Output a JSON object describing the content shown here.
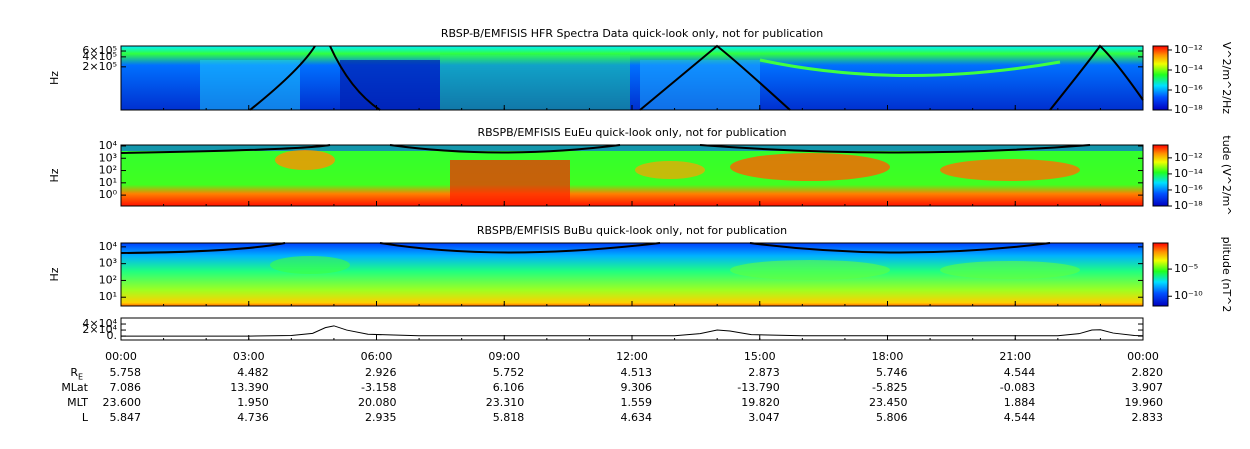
{
  "chart_data": [
    {
      "type": "spectrogram",
      "title": "RBSP-B/EMFISIS  HFR Spectra Data quick-look only, not for publication",
      "ylabel": "Hz",
      "log": true,
      "ylim": [
        10000,
        850000
      ],
      "yticks": [
        {
          "value": 200000,
          "label": "2×10⁵"
        },
        {
          "value": 400000,
          "label": "4×10⁵"
        },
        {
          "value": 600000,
          "label": "6×10⁵"
        }
      ],
      "colorbar": {
        "label": "V^2/m^2/Hz",
        "lim": [
          1e-18,
          2.5e-12
        ],
        "ticks": [
          {
            "value": 1e-12,
            "label": "10⁻¹²"
          },
          {
            "value": 1e-14,
            "label": "10⁻¹⁴"
          },
          {
            "value": 1e-16,
            "label": "10⁻¹⁶"
          },
          {
            "value": 1e-18,
            "label": "10⁻¹⁸"
          }
        ]
      }
    },
    {
      "type": "spectrogram",
      "title": "RBSPB/EMFISIS  EuEu quick-look only, not for publication",
      "ylabel": "Hz",
      "log": true,
      "ylim": [
        0.13,
        12000
      ],
      "yticks": [
        {
          "value": 1,
          "label": "10⁰"
        },
        {
          "value": 10,
          "label": "10¹"
        },
        {
          "value": 100,
          "label": "10²"
        },
        {
          "value": 1000,
          "label": "10³"
        },
        {
          "value": 10000,
          "label": "10⁴"
        }
      ],
      "colorbar": {
        "label": "tude (V^2/m^",
        "lim": [
          1e-18,
          4e-11
        ],
        "ticks": [
          {
            "value": 1e-12,
            "label": "10⁻¹²"
          },
          {
            "value": 1e-14,
            "label": "10⁻¹⁴"
          },
          {
            "value": 1e-16,
            "label": "10⁻¹⁶"
          },
          {
            "value": 1e-18,
            "label": "10⁻¹⁸"
          }
        ]
      }
    },
    {
      "type": "spectrogram",
      "title": "RBSPB/EMFISIS  BuBu quick-look only, not for publication",
      "ylabel": "Hz",
      "log": true,
      "ylim": [
        3,
        17000
      ],
      "yticks": [
        {
          "value": 10,
          "label": "10¹"
        },
        {
          "value": 100,
          "label": "10²"
        },
        {
          "value": 1000,
          "label": "10³"
        },
        {
          "value": 10000,
          "label": "10⁴"
        }
      ],
      "colorbar": {
        "label": "plitude (nT^2",
        "lim": [
          1.6e-12,
          0.63
        ],
        "ticks": [
          {
            "value": 1e-05,
            "label": "10⁻⁵"
          },
          {
            "value": 1e-10,
            "label": "10⁻¹⁰"
          }
        ]
      }
    },
    {
      "type": "line",
      "ylim": [
        -13000,
        60000
      ],
      "yticks": [
        {
          "value": 0,
          "label": "0."
        },
        {
          "value": 20000,
          "label": "2×10⁴"
        },
        {
          "value": 40000,
          "label": "4×10⁴"
        }
      ],
      "x": [
        0,
        3,
        4,
        4.5,
        4.8,
        5.0,
        5.3,
        5.8,
        7,
        13,
        13.6,
        14.0,
        14.3,
        14.8,
        16,
        22,
        22.5,
        22.8,
        23.0,
        23.3,
        23.8,
        24
      ],
      "series": [
        {
          "color": "#000000",
          "values": [
            0,
            0,
            2000,
            9000,
            28000,
            34000,
            20000,
            6000,
            1000,
            1000,
            8000,
            20000,
            17000,
            5000,
            1000,
            1000,
            8000,
            20000,
            21000,
            10000,
            2000,
            1000
          ]
        }
      ]
    }
  ],
  "time_axis": {
    "xlim": [
      0,
      24
    ],
    "xticks": [
      {
        "value": 0,
        "label": "00:00"
      },
      {
        "value": 3,
        "label": "03:00"
      },
      {
        "value": 6,
        "label": "06:00"
      },
      {
        "value": 9,
        "label": "09:00"
      },
      {
        "value": 12,
        "label": "12:00"
      },
      {
        "value": 15,
        "label": "15:00"
      },
      {
        "value": 18,
        "label": "18:00"
      },
      {
        "value": 21,
        "label": "21:00"
      },
      {
        "value": 24,
        "label": "00:00"
      }
    ]
  },
  "ephemeris": [
    {
      "label": "R",
      "sub": "E",
      "values": [
        "5.758",
        "4.482",
        "2.926",
        "5.752",
        "4.513",
        "2.873",
        "5.746",
        "4.544",
        "2.820"
      ]
    },
    {
      "label": "MLat",
      "values": [
        "7.086",
        "13.390",
        "-3.158",
        "6.106",
        "9.306",
        "-13.790",
        "-5.825",
        "-0.083",
        "3.907"
      ]
    },
    {
      "label": "MLT",
      "values": [
        "23.600",
        "1.950",
        "20.080",
        "23.310",
        "1.559",
        "19.820",
        "23.450",
        "1.884",
        "19.960"
      ]
    },
    {
      "label": "L",
      "values": [
        "5.847",
        "4.736",
        "2.935",
        "5.818",
        "4.634",
        "3.047",
        "5.806",
        "4.544",
        "2.833"
      ]
    }
  ]
}
